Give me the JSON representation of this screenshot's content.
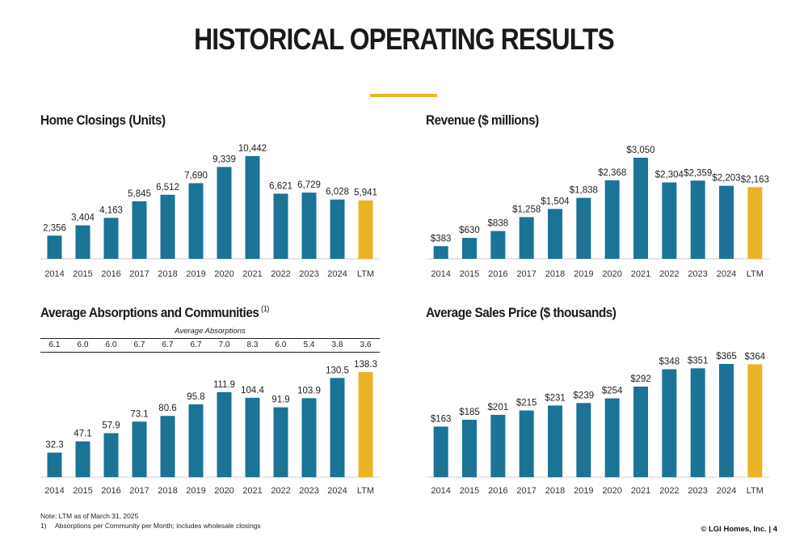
{
  "page": {
    "title": "HISTORICAL OPERATING RESULTS",
    "note": "Note: LTM as of March 31, 2025",
    "footnote_num": "1)",
    "footnote_text": "Absorptions per Community per Month; includes wholesale closings",
    "footer": "© LGI Homes, Inc. | 4"
  },
  "colors": {
    "bar": "#1b7396",
    "highlight": "#e9b526",
    "accent_rule": "#e9b526",
    "axis": "#cccccc"
  },
  "absorptions": {
    "caption": "Average Absorptions",
    "values": [
      "6.1",
      "6.0",
      "6.0",
      "6.7",
      "6.7",
      "6.7",
      "7.0",
      "8.3",
      "6.0",
      "5.4",
      "3.8",
      "3.6"
    ]
  },
  "chart_data": [
    {
      "id": "home-closings",
      "type": "bar",
      "title": "Home Closings (Units)",
      "title_sup": "",
      "categories": [
        "2014",
        "2015",
        "2016",
        "2017",
        "2018",
        "2019",
        "2020",
        "2021",
        "2022",
        "2023",
        "2024",
        "LTM"
      ],
      "values": [
        2356,
        3404,
        4163,
        5845,
        6512,
        7690,
        9339,
        10442,
        6621,
        6729,
        6028,
        5941
      ],
      "labels": [
        "2,356",
        "3,404",
        "4,163",
        "5,845",
        "6,512",
        "7,690",
        "9,339",
        "10,442",
        "6,621",
        "6,729",
        "6,028",
        "5,941"
      ],
      "highlight_index": 11,
      "ylim": [
        0,
        10442
      ],
      "xlabel": "",
      "ylabel": ""
    },
    {
      "id": "revenue",
      "type": "bar",
      "title": "Revenue ($ millions)",
      "title_sup": "",
      "categories": [
        "2014",
        "2015",
        "2016",
        "2017",
        "2018",
        "2019",
        "2020",
        "2021",
        "2022",
        "2023",
        "2024",
        "LTM"
      ],
      "values": [
        383,
        630,
        838,
        1258,
        1504,
        1838,
        2368,
        3050,
        2304,
        2359,
        2203,
        2163
      ],
      "labels": [
        "$383",
        "$630",
        "$838",
        "$1,258",
        "$1,504",
        "$1,838",
        "$2,368",
        "$3,050",
        "$2,304",
        "$2,359",
        "$2,203",
        "$2,163"
      ],
      "highlight_index": 11,
      "ylim": [
        0,
        3050
      ],
      "xlabel": "",
      "ylabel": ""
    },
    {
      "id": "absorptions-communities",
      "type": "bar",
      "title": "Average Absorptions and Communities",
      "title_sup": "(1)",
      "categories": [
        "2014",
        "2015",
        "2016",
        "2017",
        "2018",
        "2019",
        "2020",
        "2021",
        "2022",
        "2023",
        "2024",
        "LTM"
      ],
      "values": [
        32.3,
        47.1,
        57.9,
        73.1,
        80.6,
        95.8,
        111.9,
        104.4,
        91.9,
        103.9,
        130.5,
        138.3
      ],
      "labels": [
        "32.3",
        "47.1",
        "57.9",
        "73.1",
        "80.6",
        "95.8",
        "111.9",
        "104.4",
        "91.9",
        "103.9",
        "130.5",
        "138.3"
      ],
      "highlight_index": 11,
      "ylim": [
        0,
        138.3
      ],
      "xlabel": "",
      "ylabel": ""
    },
    {
      "id": "average-sales-price",
      "type": "bar",
      "title": "Average Sales Price ($ thousands)",
      "title_sup": "",
      "categories": [
        "2014",
        "2015",
        "2016",
        "2017",
        "2018",
        "2019",
        "2020",
        "2021",
        "2022",
        "2023",
        "2024",
        "LTM"
      ],
      "values": [
        163,
        185,
        201,
        215,
        231,
        239,
        254,
        292,
        348,
        351,
        365,
        364
      ],
      "labels": [
        "$163",
        "$185",
        "$201",
        "$215",
        "$231",
        "$239",
        "$254",
        "$292",
        "$348",
        "$351",
        "$365",
        "$364"
      ],
      "highlight_index": 11,
      "ylim": [
        0,
        365
      ],
      "xlabel": "",
      "ylabel": ""
    }
  ]
}
